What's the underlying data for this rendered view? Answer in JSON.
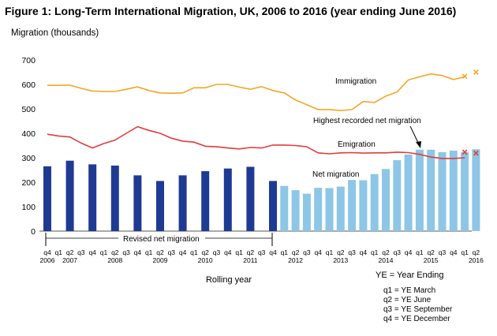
{
  "figure": {
    "title": "Figure 1: Long-Term International Migration, UK, 2006 to 2016 (year ending June 2016)"
  },
  "chart_data": {
    "type": "bar+line",
    "ylabel": "Migration (thousands)",
    "xlabel": "Rolling year",
    "ylim": [
      0,
      700
    ],
    "yticks": [
      0,
      100,
      200,
      300,
      400,
      500,
      600,
      700
    ],
    "grid": false,
    "quarters": [
      "q4",
      "q1",
      "q2",
      "q3",
      "q4",
      "q1",
      "q2",
      "q3",
      "q4",
      "q1",
      "q2",
      "q3",
      "q4",
      "q1",
      "q2",
      "q3",
      "q4",
      "q1",
      "q2",
      "q3",
      "q4",
      "q1",
      "q2",
      "q3",
      "q4",
      "q1",
      "q2",
      "q3",
      "q4",
      "q1",
      "q2",
      "q3",
      "q4",
      "q1",
      "q2",
      "q3",
      "q4",
      "q1",
      "q2"
    ],
    "year_labels": [
      {
        "index": 0,
        "label": "2006"
      },
      {
        "index": 2,
        "label": "2007"
      },
      {
        "index": 6,
        "label": "2008"
      },
      {
        "index": 10,
        "label": "2009"
      },
      {
        "index": 14,
        "label": "2010"
      },
      {
        "index": 18,
        "label": "2011"
      },
      {
        "index": 22,
        "label": "2012"
      },
      {
        "index": 26,
        "label": "2013"
      },
      {
        "index": 30,
        "label": "2014"
      },
      {
        "index": 34,
        "label": "2015"
      },
      {
        "index": 38,
        "label": "2016"
      }
    ],
    "series": [
      {
        "name": "Revised net migration",
        "type": "bar",
        "color": "#1F3A93",
        "values": [
          265,
          null,
          288,
          null,
          273,
          null,
          268,
          null,
          228,
          null,
          205,
          null,
          228,
          null,
          245,
          null,
          256,
          null,
          263,
          null,
          205,
          null,
          null,
          null,
          null,
          null,
          null,
          null,
          null,
          null,
          null,
          null,
          null,
          null,
          null,
          null,
          null,
          null,
          null
        ]
      },
      {
        "name": "Net migration",
        "type": "bar",
        "color": "#8DC6E6",
        "values": [
          null,
          null,
          null,
          null,
          null,
          null,
          null,
          null,
          null,
          null,
          null,
          null,
          null,
          null,
          null,
          null,
          null,
          null,
          null,
          null,
          null,
          185,
          167,
          153,
          177,
          176,
          182,
          209,
          208,
          233,
          254,
          290,
          313,
          333,
          333,
          323,
          329,
          323,
          335
        ]
      },
      {
        "name": "Immigration",
        "type": "line",
        "color": "#F5A623",
        "values": [
          596,
          596,
          597,
          584,
          573,
          571,
          571,
          580,
          590,
          575,
          565,
          564,
          565,
          586,
          586,
          600,
          600,
          589,
          580,
          591,
          575,
          565,
          536,
          517,
          497,
          497,
          493,
          497,
          530,
          526,
          552,
          569,
          618,
          631,
          643,
          636,
          620,
          631,
          null
        ],
        "provisional": [
          {
            "index": 37,
            "value": 633
          },
          {
            "index": 38,
            "value": 650
          }
        ]
      },
      {
        "name": "Emigration",
        "type": "line",
        "color": "#E23C3C",
        "values": [
          396,
          389,
          385,
          360,
          340,
          358,
          372,
          400,
          427,
          412,
          400,
          380,
          368,
          364,
          347,
          345,
          340,
          336,
          342,
          340,
          352,
          352,
          350,
          345,
          320,
          316,
          320,
          321,
          319,
          320,
          320,
          323,
          321,
          314,
          303,
          297,
          297,
          300,
          null
        ],
        "provisional": [
          {
            "index": 37,
            "value": 323
          },
          {
            "index": 38,
            "value": 319
          }
        ]
      }
    ],
    "annotations": [
      {
        "text": "Immigration"
      },
      {
        "text": "Highest recorded net migration"
      },
      {
        "text": "Emigration"
      },
      {
        "text": "Net migration"
      },
      {
        "text": "Revised net migration"
      }
    ]
  },
  "legend": {
    "ye": "YE = Year Ending",
    "quarters": [
      "q1 = YE March",
      "q2 = YE June",
      "q3 = YE September",
      "q4 = YE December"
    ]
  }
}
